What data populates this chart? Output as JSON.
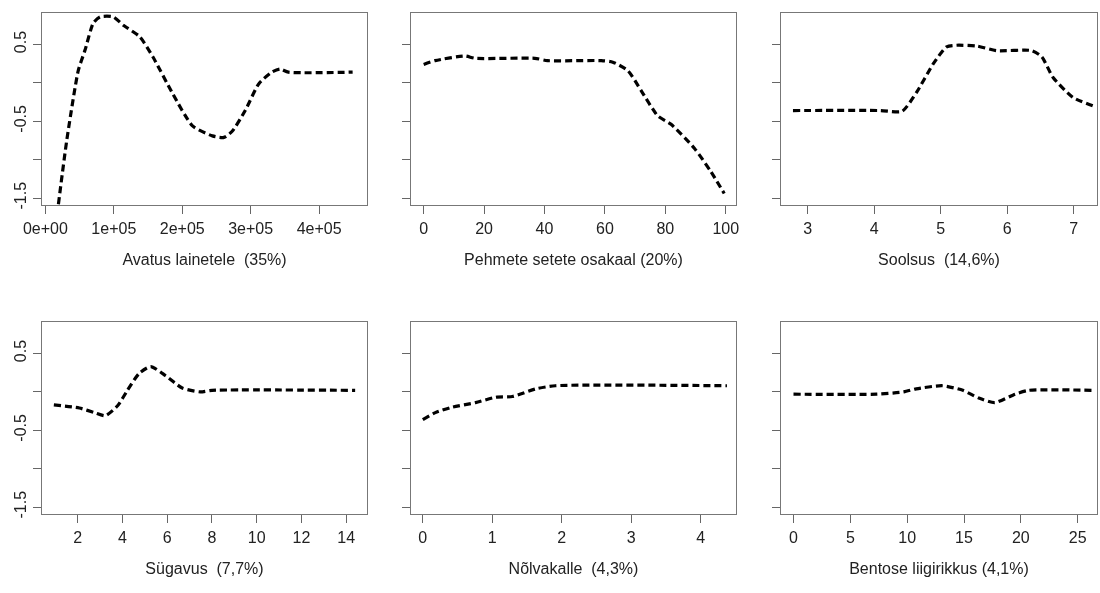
{
  "chart_data": [
    {
      "type": "line",
      "xlabel": "Avatus lainetele  (35%)",
      "color": "#000000",
      "line_style": "dashed",
      "grid": false,
      "x": [
        19000,
        31000,
        48000,
        58000,
        70000,
        80000,
        99000,
        114000,
        138000,
        157000,
        186000,
        215000,
        244000,
        261000,
        273000,
        292000,
        312000,
        331000,
        343000,
        355000,
        449000
      ],
      "values": [
        -1.58,
        -0.76,
        0.16,
        0.43,
        0.78,
        0.86,
        0.86,
        0.75,
        0.6,
        0.34,
        -0.14,
        -0.56,
        -0.69,
        -0.71,
        -0.63,
        -0.36,
        -0.01,
        0.14,
        0.18,
        0.14,
        0.14
      ],
      "xlim": [
        -5000,
        470000
      ],
      "xticks": [
        {
          "value": 0,
          "label": "0e+00"
        },
        {
          "value": 100000,
          "label": "1e+05"
        },
        {
          "value": 200000,
          "label": "2e+05"
        },
        {
          "value": 300000,
          "label": "3e+05"
        },
        {
          "value": 400000,
          "label": "4e+05"
        }
      ],
      "ylim": [
        -1.59,
        0.91
      ],
      "yticks": [
        0.5,
        {
          "value": 0,
          "label": null
        },
        -0.5,
        {
          "value": -1,
          "label": null
        },
        -1.5
      ]
    },
    {
      "type": "line",
      "xlabel": "Pehmete setete osakaal (20%)",
      "color": "#000000",
      "line_style": "dashed",
      "grid": false,
      "tick_labels": "x",
      "x": [
        0,
        3.8,
        13.7,
        17,
        36.8,
        41,
        58.8,
        62.6,
        67.6,
        72,
        77.5,
        81.9,
        89.6,
        95,
        99.5
      ],
      "values": [
        0.24,
        0.29,
        0.35,
        0.32,
        0.32,
        0.29,
        0.29,
        0.27,
        0.16,
        -0.1,
        -0.43,
        -0.54,
        -0.85,
        -1.15,
        -1.44
      ],
      "xlim": [
        -4.2,
        103.4
      ],
      "xticks": [
        0,
        20,
        40,
        60,
        80,
        100
      ],
      "ylim": [
        -1.59,
        0.91
      ],
      "yticks": [
        {
          "value": 0.5,
          "label": null
        },
        {
          "value": 0,
          "label": null
        },
        {
          "value": -0.5,
          "label": null
        },
        {
          "value": -1,
          "label": null
        },
        {
          "value": -1.5,
          "label": null
        }
      ]
    },
    {
      "type": "line",
      "xlabel": "Soolsus  (14,6%)",
      "color": "#000000",
      "line_style": "dashed",
      "grid": false,
      "tick_labels": "x",
      "x": [
        2.78,
        4.09,
        4.42,
        4.64,
        4.89,
        5.09,
        5.24,
        5.54,
        5.84,
        6.37,
        6.52,
        6.69,
        6.99,
        7.29
      ],
      "values": [
        -0.36,
        -0.36,
        -0.37,
        -0.12,
        0.25,
        0.47,
        0.49,
        0.48,
        0.42,
        0.42,
        0.34,
        0.07,
        -0.19,
        -0.3
      ],
      "xlim": [
        2.6,
        7.35
      ],
      "xticks": [
        3,
        4,
        5,
        6,
        7
      ],
      "ylim": [
        -1.59,
        0.91
      ],
      "yticks": [
        {
          "value": 0.5,
          "label": null
        },
        {
          "value": 0,
          "label": null
        },
        {
          "value": -0.5,
          "label": null
        },
        {
          "value": -1,
          "label": null
        },
        {
          "value": -1.5,
          "label": null
        }
      ]
    },
    {
      "type": "line",
      "xlabel": "Sügavus  (7,7%)",
      "color": "#000000",
      "line_style": "dashed",
      "grid": false,
      "x": [
        0.93,
        2.07,
        2.74,
        3.23,
        3.78,
        4.22,
        4.74,
        5.26,
        5.93,
        6.67,
        7.48,
        8,
        14.4
      ],
      "values": [
        -0.17,
        -0.21,
        -0.27,
        -0.31,
        -0.18,
        0.02,
        0.24,
        0.33,
        0.21,
        0.05,
        0,
        0.02,
        0.02
      ],
      "xlim": [
        0.4,
        14.93
      ],
      "xticks": [
        2,
        4,
        6,
        8,
        10,
        12,
        14
      ],
      "ylim": [
        -1.59,
        0.91
      ],
      "yticks": [
        0.5,
        {
          "value": 0,
          "label": null
        },
        -0.5,
        {
          "value": -1,
          "label": null
        },
        -1.5
      ]
    },
    {
      "type": "line",
      "xlabel": "Nõlvakalle  (4,3%)",
      "color": "#000000",
      "line_style": "dashed",
      "grid": false,
      "tick_labels": "x",
      "x": [
        0,
        0.18,
        0.42,
        0.76,
        1.05,
        1.29,
        1.63,
        1.91,
        4.38
      ],
      "values": [
        -0.36,
        -0.27,
        -0.2,
        -0.14,
        -0.07,
        -0.06,
        0.04,
        0.08,
        0.08
      ],
      "xlim": [
        -0.17,
        4.51
      ],
      "xticks": [
        0,
        1,
        2,
        3,
        4
      ],
      "ylim": [
        -1.59,
        0.91
      ],
      "yticks": [
        {
          "value": 0.5,
          "label": null
        },
        {
          "value": 0,
          "label": null
        },
        {
          "value": -0.5,
          "label": null
        },
        {
          "value": -1,
          "label": null
        },
        {
          "value": -1.5,
          "label": null
        }
      ]
    },
    {
      "type": "line",
      "xlabel": "Bentose liigirikkus (4,1%)",
      "color": "#000000",
      "line_style": "dashed",
      "grid": false,
      "tick_labels": "x",
      "x": [
        0,
        7.3,
        9.7,
        10.8,
        13.1,
        14.9,
        16.3,
        17.7,
        19.5,
        20.7,
        26.3
      ],
      "values": [
        -0.03,
        -0.03,
        0,
        0.04,
        0.08,
        0.02,
        -0.08,
        -0.14,
        -0.03,
        0.02,
        0.02
      ],
      "xlim": [
        -1.1,
        26.7
      ],
      "xticks": [
        0,
        5,
        10,
        15,
        20,
        25
      ],
      "ylim": [
        -1.59,
        0.91
      ],
      "yticks": [
        {
          "value": 0.5,
          "label": null
        },
        {
          "value": 0,
          "label": null
        },
        {
          "value": -0.5,
          "label": null
        },
        {
          "value": -1,
          "label": null
        },
        {
          "value": -1.5,
          "label": null
        }
      ]
    }
  ]
}
